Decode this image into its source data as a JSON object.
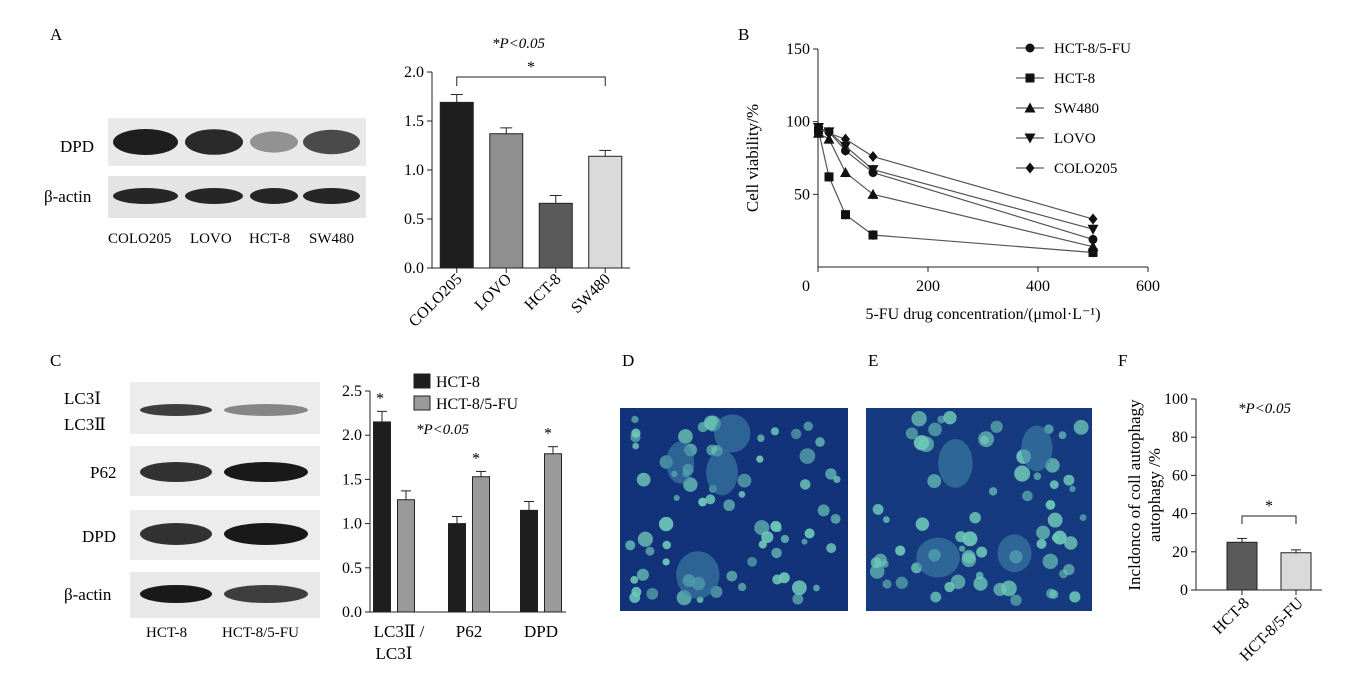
{
  "panel_letters": {
    "a": "A",
    "b": "B",
    "c": "C",
    "d": "D",
    "e": "E",
    "f": "F"
  },
  "blot_a": {
    "rows": [
      "DPD",
      "β-actin"
    ],
    "lanes": [
      "COLO205",
      "LOVO",
      "HCT-8",
      "SW480"
    ],
    "band_intensity": {
      "DPD": [
        1.0,
        0.95,
        0.4,
        0.8
      ],
      "β-actin": [
        1.0,
        1.0,
        1.0,
        1.0
      ]
    }
  },
  "blot_c": {
    "rows": [
      "LC3Ⅰ",
      "LC3Ⅱ",
      "P62",
      "DPD",
      "β-actin"
    ],
    "lanes": [
      "HCT-8",
      "HCT-8/5-FU"
    ],
    "band_intensity": {
      "LC3": [
        0.85,
        0.5
      ],
      "P62": [
        0.9,
        1.0
      ],
      "DPD": [
        0.9,
        1.0
      ],
      "β-actin": [
        1.0,
        0.85
      ]
    }
  },
  "sig_a": "*P<0.05",
  "sig_c": "*P<0.05",
  "sig_f": "*P<0.05",
  "image_labels": {
    "d": "D",
    "e": "E"
  },
  "chart_data": [
    {
      "id": "A-bar",
      "type": "bar",
      "categories": [
        "COLO205",
        "LOVO",
        "HCT-8",
        "SW480"
      ],
      "values": [
        1.69,
        1.37,
        0.66,
        1.14
      ],
      "errors": [
        0.08,
        0.06,
        0.08,
        0.06
      ],
      "colors": [
        "#1e1e1e",
        "#8f8f8f",
        "#5a5a5a",
        "#dadada"
      ],
      "ylim": [
        0,
        2.0
      ],
      "yticks": [
        "0.0",
        "0.5",
        "1.0",
        "1.5",
        "2.0"
      ],
      "significance": {
        "from": 0,
        "to": 3,
        "label": "*"
      }
    },
    {
      "id": "B-line",
      "type": "line",
      "xlabel": "5-FU drug concentration/(μmol·L⁻¹)",
      "ylabel": "Cell viability/%",
      "xlim": [
        0,
        600
      ],
      "ylim": [
        0,
        150
      ],
      "xticks": [
        "0",
        "200",
        "400",
        "600"
      ],
      "yticks": [
        "50",
        "100",
        "150"
      ],
      "legend_position": "top-right",
      "series": [
        {
          "name": "HCT-8/5-FU",
          "marker": "circle",
          "x": [
            0,
            20,
            50,
            100,
            500
          ],
          "y": [
            95,
            93,
            80,
            65,
            19
          ]
        },
        {
          "name": "HCT-8",
          "marker": "square",
          "x": [
            0,
            20,
            50,
            100,
            500
          ],
          "y": [
            94,
            62,
            36,
            22,
            10
          ]
        },
        {
          "name": "SW480",
          "marker": "triangle-up",
          "x": [
            0,
            20,
            50,
            100,
            500
          ],
          "y": [
            92,
            88,
            65,
            50,
            14
          ]
        },
        {
          "name": "LOVO",
          "marker": "triangle-down",
          "x": [
            0,
            20,
            50,
            100,
            500
          ],
          "y": [
            96,
            93,
            83,
            67,
            26
          ]
        },
        {
          "name": "COLO205",
          "marker": "diamond",
          "x": [
            0,
            20,
            50,
            100,
            500
          ],
          "y": [
            95,
            92,
            88,
            76,
            33
          ]
        }
      ]
    },
    {
      "id": "C-bar",
      "type": "bar",
      "categories": [
        "LC3Ⅱ/LC3Ⅰ",
        "P62",
        "DPD"
      ],
      "ylim": [
        0,
        2.5
      ],
      "yticks": [
        "0.0",
        "0.5",
        "1.0",
        "1.5",
        "2.0",
        "2.5"
      ],
      "legend_position": "top-right",
      "series": [
        {
          "name": "HCT-8",
          "color": "#1e1e1e",
          "values": [
            2.15,
            1.0,
            1.15
          ],
          "errors": [
            0.12,
            0.08,
            0.1
          ]
        },
        {
          "name": "HCT-8/5-FU",
          "color": "#9a9a9a",
          "values": [
            1.27,
            1.53,
            1.79
          ],
          "errors": [
            0.1,
            0.06,
            0.08
          ]
        }
      ],
      "stars": [
        "*",
        "*",
        "*"
      ]
    },
    {
      "id": "F-bar",
      "type": "bar",
      "categories": [
        "HCT-8",
        "HCT-8/5-FU"
      ],
      "values": [
        25,
        19.5
      ],
      "errors": [
        2,
        1.5
      ],
      "colors": [
        "#5a5a5a",
        "#dadada"
      ],
      "ylabel": "Incldonco of coll autophagy /%",
      "ylim": [
        0,
        100
      ],
      "yticks": [
        "0",
        "20",
        "40",
        "60",
        "80",
        "100"
      ],
      "significance": {
        "from": 0,
        "to": 1,
        "label": "*"
      }
    }
  ]
}
